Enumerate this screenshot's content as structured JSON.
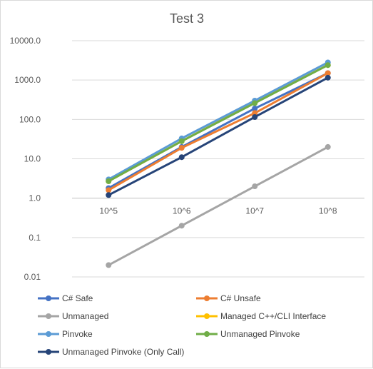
{
  "chart_data": {
    "type": "line",
    "title": "Test 3",
    "categories": [
      "10^5",
      "10^6",
      "10^7",
      "10^8"
    ],
    "y_axis": {
      "scale": "log",
      "ylim": [
        0.01,
        10000
      ],
      "tick_values": [
        0.01,
        0.1,
        1,
        10,
        100,
        1000,
        10000
      ],
      "tick_labels": [
        "0.01",
        "0.1",
        "1.0",
        "10.0",
        "100.0",
        "1000.0",
        "10000.0"
      ]
    },
    "grid": true,
    "legend_position": "bottom",
    "series": [
      {
        "name": "C# Safe",
        "color": "#4472c4",
        "values": [
          1.8,
          20,
          190,
          1500
        ]
      },
      {
        "name": "C# Unsafe",
        "color": "#ed7d31",
        "values": [
          1.6,
          19,
          145,
          1500
        ]
      },
      {
        "name": "Unmanaged",
        "color": "#a5a5a5",
        "values": [
          0.02,
          0.2,
          2.0,
          20
        ]
      },
      {
        "name": "Managed C++/CLI Interface",
        "color": "#ffc000",
        "values": [
          2.7,
          28,
          270,
          2400
        ]
      },
      {
        "name": "Pinvoke",
        "color": "#5b9bd5",
        "values": [
          3.0,
          33,
          300,
          2800
        ]
      },
      {
        "name": "Unmanaged Pinvoke",
        "color": "#70ad47",
        "values": [
          2.7,
          28,
          260,
          2400
        ]
      },
      {
        "name": "Unmanaged Pinvoke (Only Call)",
        "color": "#264478",
        "values": [
          1.2,
          11,
          115,
          1150
        ]
      }
    ]
  }
}
